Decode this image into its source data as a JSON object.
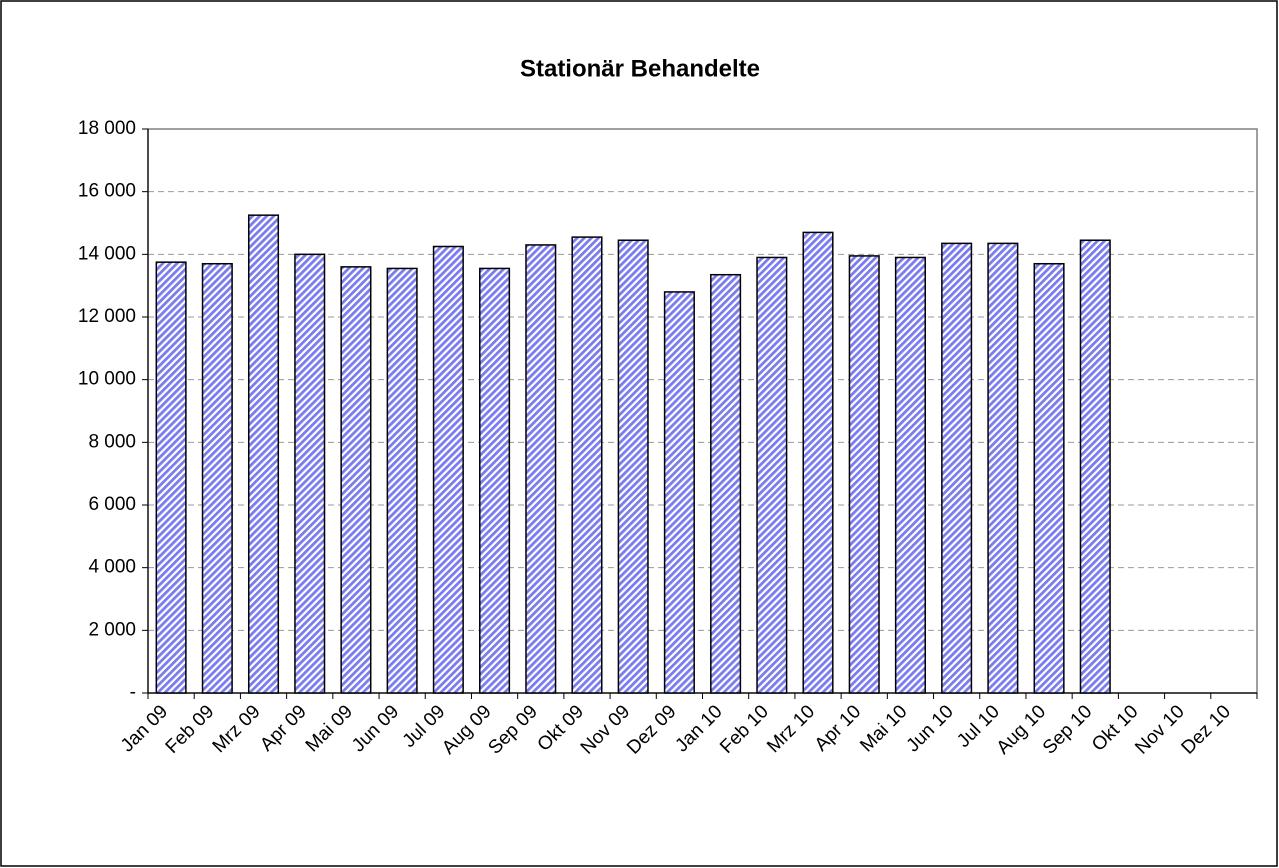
{
  "chart_data": {
    "type": "bar",
    "title": "Stationär Behandelte",
    "categories": [
      "Jan 09",
      "Feb 09",
      "Mrz 09",
      "Apr 09",
      "Mai 09",
      "Jun 09",
      "Jul 09",
      "Aug 09",
      "Sep 09",
      "Okt 09",
      "Nov 09",
      "Dez 09",
      "Jan 10",
      "Feb 10",
      "Mrz 10",
      "Apr 10",
      "Mai 10",
      "Jun 10",
      "Jul 10",
      "Aug 10",
      "Sep 10",
      "Okt 10",
      "Nov 10",
      "Dez 10"
    ],
    "values": [
      13750,
      13700,
      15250,
      14000,
      13600,
      13550,
      14250,
      13550,
      14300,
      14550,
      14450,
      12800,
      13350,
      13900,
      14700,
      13950,
      13900,
      14350,
      14350,
      13700,
      14450,
      null,
      null,
      null
    ],
    "color": "#7b7bf0",
    "ylim": [
      0,
      18000
    ],
    "yticks": [
      {
        "value": 0,
        "label": "-"
      },
      {
        "value": 2000,
        "label": "2 000"
      },
      {
        "value": 4000,
        "label": "4 000"
      },
      {
        "value": 6000,
        "label": "6 000"
      },
      {
        "value": 8000,
        "label": "8 000"
      },
      {
        "value": 10000,
        "label": "10 000"
      },
      {
        "value": 12000,
        "label": "12 000"
      },
      {
        "value": 14000,
        "label": "14 000"
      },
      {
        "value": 16000,
        "label": "16 000"
      },
      {
        "value": 18000,
        "label": "18 000"
      }
    ],
    "grid": true
  }
}
